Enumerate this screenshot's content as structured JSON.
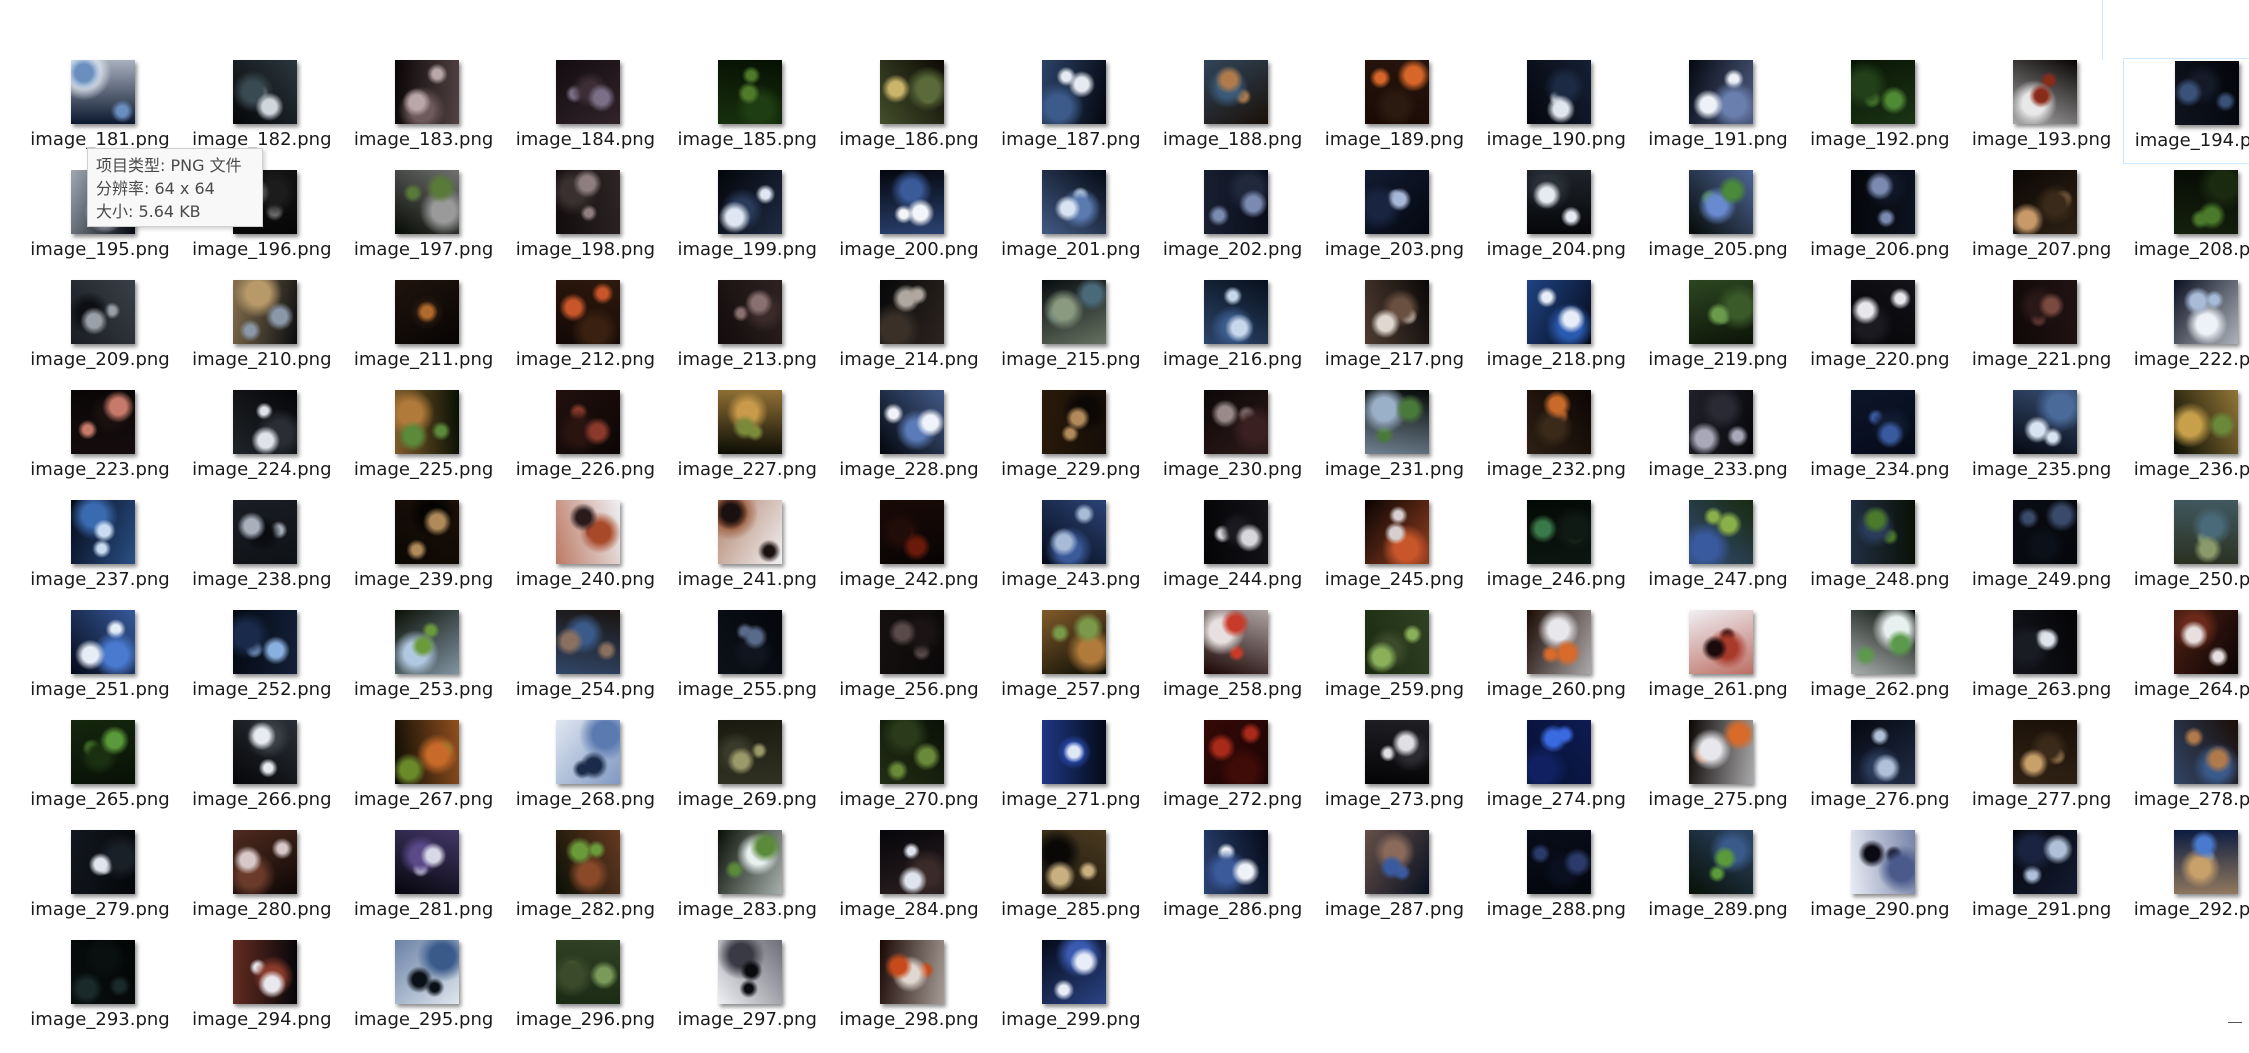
{
  "files": [
    {
      "name": "image_181.png",
      "colors": [
        "#0b1830",
        "#6a8fbf",
        "#e8eef6"
      ]
    },
    {
      "name": "image_182.png",
      "colors": [
        "#050608",
        "#cfd6dc",
        "#3a4a52"
      ]
    },
    {
      "name": "image_183.png",
      "colors": [
        "#0a0506",
        "#b9a7a9",
        "#6e5a5c"
      ]
    },
    {
      "name": "image_184.png",
      "colors": [
        "#120c10",
        "#7a6f86",
        "#3d2d35"
      ]
    },
    {
      "name": "image_185.png",
      "colors": [
        "#061003",
        "#4e7a2a",
        "#1f3d12"
      ]
    },
    {
      "name": "image_186.png",
      "colors": [
        "#0c0904",
        "#c9b46a",
        "#5a6a3a"
      ]
    },
    {
      "name": "image_187.png",
      "colors": [
        "#04070f",
        "#e6ebf2",
        "#3c5a8a"
      ]
    },
    {
      "name": "image_188.png",
      "colors": [
        "#1a1008",
        "#b07a4a",
        "#3a5a7a"
      ]
    },
    {
      "name": "image_189.png",
      "colors": [
        "#1a0a04",
        "#d8662a",
        "#2a1a10"
      ]
    },
    {
      "name": "image_190.png",
      "colors": [
        "#05060c",
        "#dfe6ee",
        "#1c2a44"
      ]
    },
    {
      "name": "image_191.png",
      "colors": [
        "#050810",
        "#eef2f8",
        "#6a7fae"
      ]
    },
    {
      "name": "image_192.png",
      "colors": [
        "#091406",
        "#4f8a35",
        "#22401a"
      ]
    },
    {
      "name": "image_193.png",
      "colors": [
        "#080404",
        "#8a2a1a",
        "#e8e8e8"
      ]
    },
    {
      "name": "image_194.png",
      "colors": [
        "#03050a",
        "#3a5278",
        "#141a28"
      ]
    },
    {
      "name": "image_195.png",
      "colors": [
        "#050810",
        "#6a86b8",
        "#dfe8f2"
      ]
    },
    {
      "name": "image_196.png",
      "colors": [
        "#060606",
        "#6a6a6a",
        "#1c1c1c"
      ]
    },
    {
      "name": "image_197.png",
      "colors": [
        "#070b05",
        "#5a7a3a",
        "#9a9a9a"
      ]
    },
    {
      "name": "image_198.png",
      "colors": [
        "#110c0c",
        "#8e7e80",
        "#3a3030"
      ]
    },
    {
      "name": "image_199.png",
      "colors": [
        "#03050a",
        "#dfe8f2",
        "#2a3a5a"
      ]
    },
    {
      "name": "image_200.png",
      "colors": [
        "#04060c",
        "#f2f5fa",
        "#3a5a9a"
      ]
    },
    {
      "name": "image_201.png",
      "colors": [
        "#050a14",
        "#d8e4f2",
        "#5a7ab0"
      ]
    },
    {
      "name": "image_202.png",
      "colors": [
        "#080c18",
        "#7a8ab0",
        "#20283c"
      ]
    },
    {
      "name": "image_203.png",
      "colors": [
        "#04070f",
        "#a8b8d8",
        "#182440"
      ]
    },
    {
      "name": "image_204.png",
      "colors": [
        "#050608",
        "#e6ebf2",
        "#2a3038"
      ]
    },
    {
      "name": "image_205.png",
      "colors": [
        "#060a06",
        "#4a8a3a",
        "#6a8ad0"
      ]
    },
    {
      "name": "image_206.png",
      "colors": [
        "#04060a",
        "#7a8ab0",
        "#101828"
      ]
    },
    {
      "name": "image_207.png",
      "colors": [
        "#0c0805",
        "#c89a6a",
        "#3a2a1a"
      ]
    },
    {
      "name": "image_208.png",
      "colors": [
        "#060a04",
        "#4a7a2a",
        "#1a2a10"
      ]
    },
    {
      "name": "image_209.png",
      "colors": [
        "#3a4048",
        "#9aa0a8",
        "#0c0e12"
      ]
    },
    {
      "name": "image_210.png",
      "colors": [
        "#0a0c10",
        "#8a98a8",
        "#b89a6a"
      ]
    },
    {
      "name": "image_211.png",
      "colors": [
        "#060404",
        "#b06a2a",
        "#2a1a10"
      ]
    },
    {
      "name": "image_212.png",
      "colors": [
        "#120806",
        "#c8562a",
        "#3a2010"
      ]
    },
    {
      "name": "image_213.png",
      "colors": [
        "#120c0c",
        "#8a7070",
        "#3a2a2a"
      ]
    },
    {
      "name": "image_214.png",
      "colors": [
        "#08080a",
        "#b0a8a0",
        "#3a3028"
      ]
    },
    {
      "name": "image_215.png",
      "colors": [
        "#080c10",
        "#4a6a7a",
        "#8a9a80"
      ]
    },
    {
      "name": "image_216.png",
      "colors": [
        "#08101c",
        "#c8d8ec",
        "#3a5a8a"
      ]
    },
    {
      "name": "image_217.png",
      "colors": [
        "#0a0808",
        "#e0d8d0",
        "#6a5040"
      ]
    },
    {
      "name": "image_218.png",
      "colors": [
        "#050a18",
        "#e8eef8",
        "#2a5ab0"
      ]
    },
    {
      "name": "image_219.png",
      "colors": [
        "#0c1408",
        "#6a9a4a",
        "#3a5a2a"
      ]
    },
    {
      "name": "image_220.png",
      "colors": [
        "#040406",
        "#e8e8ec",
        "#1a1a20"
      ]
    },
    {
      "name": "image_221.png",
      "colors": [
        "#100808",
        "#7a4a40",
        "#2a1818"
      ]
    },
    {
      "name": "image_222.png",
      "colors": [
        "#0a1020",
        "#a8bcd8",
        "#eef2f8"
      ]
    },
    {
      "name": "image_223.png",
      "colors": [
        "#0a0606",
        "#c87a6a",
        "#1a1010"
      ]
    },
    {
      "name": "image_224.png",
      "colors": [
        "#050608",
        "#e0e4ea",
        "#2a2e34"
      ]
    },
    {
      "name": "image_225.png",
      "colors": [
        "#081004",
        "#5a8a3a",
        "#b07a3a"
      ]
    },
    {
      "name": "image_226.png",
      "colors": [
        "#0c0606",
        "#8a3a2a",
        "#2a1410"
      ]
    },
    {
      "name": "image_227.png",
      "colors": [
        "#0a0c04",
        "#7a8a3a",
        "#c89a4a"
      ]
    },
    {
      "name": "image_228.png",
      "colors": [
        "#04060c",
        "#f0f4fa",
        "#5a7ab8"
      ]
    },
    {
      "name": "image_229.png",
      "colors": [
        "#2a1a0a",
        "#b08a5a",
        "#0c0806"
      ]
    },
    {
      "name": "image_230.png",
      "colors": [
        "#0c0808",
        "#9a8a8a",
        "#3a2020"
      ]
    },
    {
      "name": "image_231.png",
      "colors": [
        "#060a06",
        "#4a7a3a",
        "#9ab0c8"
      ]
    },
    {
      "name": "image_232.png",
      "colors": [
        "#0c0604",
        "#c86a2a",
        "#3a2a1a"
      ]
    },
    {
      "name": "image_233.png",
      "colors": [
        "#08080c",
        "#a8a8b8",
        "#2a2a34"
      ]
    },
    {
      "name": "image_234.png",
      "colors": [
        "#050a18",
        "#3a5aa0",
        "#101a30"
      ]
    },
    {
      "name": "image_235.png",
      "colors": [
        "#050810",
        "#d8e4f2",
        "#4a6a9a"
      ]
    },
    {
      "name": "image_236.png",
      "colors": [
        "#080c04",
        "#6a8a3a",
        "#c8a04a"
      ]
    },
    {
      "name": "image_237.png",
      "colors": [
        "#040a18",
        "#c8dcf2",
        "#3a6ab0"
      ]
    },
    {
      "name": "image_238.png",
      "colors": [
        "#1a1e24",
        "#a8b0bc",
        "#0a0c10"
      ]
    },
    {
      "name": "image_239.png",
      "colors": [
        "#1a1008",
        "#b08a5a",
        "#060402"
      ]
    },
    {
      "name": "image_240.png",
      "colors": [
        "#eef0f4",
        "#2a1a1a",
        "#a84a2a"
      ]
    },
    {
      "name": "image_241.png",
      "colors": [
        "#f0f0f2",
        "#1a1010",
        "#9a5a3a"
      ]
    },
    {
      "name": "image_242.png",
      "colors": [
        "#080404",
        "#6a1a0a",
        "#200c08"
      ]
    },
    {
      "name": "image_243.png",
      "colors": [
        "#050a18",
        "#a8bcd8",
        "#3a5a9a"
      ]
    },
    {
      "name": "image_244.png",
      "colors": [
        "#040406",
        "#d8d8dc",
        "#1a1a20"
      ]
    },
    {
      "name": "image_245.png",
      "colors": [
        "#0a0404",
        "#d8d0d0",
        "#c8562a"
      ]
    },
    {
      "name": "image_246.png",
      "colors": [
        "#040a06",
        "#3a7a4a",
        "#101a14"
      ]
    },
    {
      "name": "image_247.png",
      "colors": [
        "#1a2a10",
        "#8ab04a",
        "#3a5aa0"
      ]
    },
    {
      "name": "image_248.png",
      "colors": [
        "#0a1006",
        "#4a7a2a",
        "#2a3a5a"
      ]
    },
    {
      "name": "image_249.png",
      "colors": [
        "#04060a",
        "#3a4a6a",
        "#0c1018"
      ]
    },
    {
      "name": "image_250.png",
      "colors": [
        "#2a3020",
        "#8a9a6a",
        "#4a6a7a"
      ]
    },
    {
      "name": "image_251.png",
      "colors": [
        "#050a18",
        "#e8eef8",
        "#4a7ad0"
      ]
    },
    {
      "name": "image_252.png",
      "colors": [
        "#040810",
        "#8ab0e0",
        "#1a2a4a"
      ]
    },
    {
      "name": "image_253.png",
      "colors": [
        "#0a1006",
        "#6a9a3a",
        "#b0c8e0"
      ]
    },
    {
      "name": "image_254.png",
      "colors": [
        "#1a1410",
        "#8a7060",
        "#3a5a8a"
      ]
    },
    {
      "name": "image_255.png",
      "colors": [
        "#04060a",
        "#5a6a8a",
        "#101620"
      ]
    },
    {
      "name": "image_256.png",
      "colors": [
        "#0a0808",
        "#5a4a4a",
        "#1a1414"
      ]
    },
    {
      "name": "image_257.png",
      "colors": [
        "#0a0c04",
        "#7a9a4a",
        "#b07a3a"
      ]
    },
    {
      "name": "image_258.png",
      "colors": [
        "#1a0604",
        "#c83a2a",
        "#e8e0e0"
      ]
    },
    {
      "name": "image_259.png",
      "colors": [
        "#1a2a10",
        "#8ab05a",
        "#3a4a2a"
      ]
    },
    {
      "name": "image_260.png",
      "colors": [
        "#1a0a04",
        "#d86a2a",
        "#e8e8ec"
      ]
    },
    {
      "name": "image_261.png",
      "colors": [
        "#f0f0f4",
        "#1a0a0a",
        "#a83a2a"
      ]
    },
    {
      "name": "image_262.png",
      "colors": [
        "#060c06",
        "#5a9a4a",
        "#e8f0f0"
      ]
    },
    {
      "name": "image_263.png",
      "colors": [
        "#040406",
        "#e0e4ec",
        "#1a1c24"
      ]
    },
    {
      "name": "image_264.png",
      "colors": [
        "#0a0404",
        "#e8e0e0",
        "#6a2a1a"
      ]
    },
    {
      "name": "image_265.png",
      "colors": [
        "#081006",
        "#5a9a3a",
        "#1a3010"
      ]
    },
    {
      "name": "image_266.png",
      "colors": [
        "#050608",
        "#e8ecf0",
        "#3a4048"
      ]
    },
    {
      "name": "image_267.png",
      "colors": [
        "#0a0c04",
        "#6a8a2a",
        "#c86a2a"
      ]
    },
    {
      "name": "image_268.png",
      "colors": [
        "#dfe6f0",
        "#1a2a4a",
        "#5a7ab0"
      ]
    },
    {
      "name": "image_269.png",
      "colors": [
        "#1a1a10",
        "#9a9a6a",
        "#3a3a2a"
      ]
    },
    {
      "name": "image_270.png",
      "colors": [
        "#0a1006",
        "#6a8a3a",
        "#2a3a1a"
      ]
    },
    {
      "name": "image_271.png",
      "colors": [
        "#040a18",
        "#e0e8f4",
        "#2a4ab0"
      ]
    },
    {
      "name": "image_272.png",
      "colors": [
        "#1a0404",
        "#a82a1a",
        "#400c08"
      ]
    },
    {
      "name": "image_273.png",
      "colors": [
        "#040406",
        "#e0e0e4",
        "#2a2a30"
      ]
    },
    {
      "name": "image_274.png",
      "colors": [
        "#061030",
        "#3a6ae0",
        "#102060"
      ]
    },
    {
      "name": "image_275.png",
      "colors": [
        "#0a0604",
        "#d86a2a",
        "#e8e8ec"
      ]
    },
    {
      "name": "image_276.png",
      "colors": [
        "#050810",
        "#b0c0d8",
        "#2a3a5a"
      ]
    },
    {
      "name": "image_277.png",
      "colors": [
        "#1a1008",
        "#c8a06a",
        "#3a2a1a"
      ]
    },
    {
      "name": "image_278.png",
      "colors": [
        "#1a0e08",
        "#b07a4a",
        "#3a5a8a"
      ]
    },
    {
      "name": "image_279.png",
      "colors": [
        "#040608",
        "#e0e6ee",
        "#1a2028"
      ]
    },
    {
      "name": "image_280.png",
      "colors": [
        "#0c0606",
        "#d8c8c8",
        "#6a3a2a"
      ]
    },
    {
      "name": "image_281.png",
      "colors": [
        "#06060c",
        "#d8d8e8",
        "#5a4a8a"
      ]
    },
    {
      "name": "image_282.png",
      "colors": [
        "#0a1006",
        "#6a9a3a",
        "#8a4a2a"
      ]
    },
    {
      "name": "image_283.png",
      "colors": [
        "#081006",
        "#5a8a3a",
        "#e8f0f0"
      ]
    },
    {
      "name": "image_284.png",
      "colors": [
        "#06060a",
        "#e0e4ec",
        "#3a2a2a"
      ]
    },
    {
      "name": "image_285.png",
      "colors": [
        "#4a3a20",
        "#c8b080",
        "#0a0806"
      ]
    },
    {
      "name": "image_286.png",
      "colors": [
        "#050a18",
        "#eef2f8",
        "#3a5a9a"
      ]
    },
    {
      "name": "image_287.png",
      "colors": [
        "#081020",
        "#3a5aa0",
        "#8a6a5a"
      ]
    },
    {
      "name": "image_288.png",
      "colors": [
        "#04060c",
        "#2a3a6a",
        "#0a1020"
      ]
    },
    {
      "name": "image_289.png",
      "colors": [
        "#081006",
        "#5a9a3a",
        "#3a5a8a"
      ]
    },
    {
      "name": "image_290.png",
      "colors": [
        "#e8ecf4",
        "#0a0a14",
        "#4a5a8a"
      ]
    },
    {
      "name": "image_291.png",
      "colors": [
        "#04060c",
        "#b0c0d8",
        "#1a2440"
      ]
    },
    {
      "name": "image_292.png",
      "colors": [
        "#0a1a40",
        "#4a7ad0",
        "#c8a06a"
      ]
    },
    {
      "name": "image_293.png",
      "colors": [
        "#040606",
        "#1a2a2a",
        "#0a1010"
      ]
    },
    {
      "name": "image_294.png",
      "colors": [
        "#06060a",
        "#e8e8ee",
        "#8a3a2a"
      ]
    },
    {
      "name": "image_295.png",
      "colors": [
        "#e0e6ee",
        "#0a1018",
        "#3a5a8a"
      ]
    },
    {
      "name": "image_296.png",
      "colors": [
        "#1a2a14",
        "#7a9a5a",
        "#3a4a2a"
      ]
    },
    {
      "name": "image_297.png",
      "colors": [
        "#eef0f4",
        "#0a0a0e",
        "#3a3a44"
      ]
    },
    {
      "name": "image_298.png",
      "colors": [
        "#1a0804",
        "#c84a1a",
        "#e0d8d0"
      ]
    },
    {
      "name": "image_299.png",
      "colors": [
        "#050a18",
        "#e8eef8",
        "#3a5ab0"
      ]
    }
  ],
  "selected_file": "image_194.png",
  "hover_file": "image_195.png",
  "tooltip": {
    "type_line": "项目类型: PNG 文件",
    "resolution_line": "分辨率: 64 x 64",
    "size_line": "大小: 5.64 KB"
  }
}
